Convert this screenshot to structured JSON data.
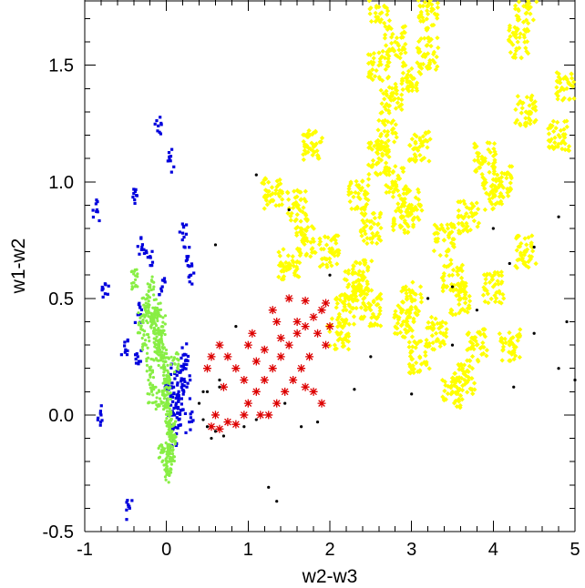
{
  "chart_data": {
    "type": "scatter",
    "title": "",
    "xlabel": "w2-w3",
    "ylabel": "w1-w2",
    "xlim": [
      -1,
      5
    ],
    "ylim": [
      -0.5,
      1.78
    ],
    "xticks": [
      "-1",
      "0",
      "1",
      "2",
      "3",
      "4",
      "5"
    ],
    "yticks": [
      "-0.5",
      "0.0",
      "0.5",
      "1.0",
      "1.5"
    ],
    "grid": false,
    "legend": "none",
    "series": [
      {
        "color": "#ffff00",
        "marker": "diamond",
        "description_distribution": "dense cloud centered near x=2.8, y=1.0; spans x 2.0–3.8, y 0.3–1.6",
        "values": [
          [
            2.8,
            1.0
          ],
          [
            2.6,
            1.1
          ],
          [
            3.0,
            0.9
          ],
          [
            2.7,
            1.2
          ],
          [
            2.9,
            0.85
          ],
          [
            2.5,
            0.8
          ],
          [
            3.1,
            1.15
          ],
          [
            2.4,
            0.6
          ],
          [
            2.3,
            0.55
          ],
          [
            2.2,
            0.45
          ],
          [
            3.4,
            0.75
          ],
          [
            3.5,
            0.6
          ],
          [
            3.6,
            0.5
          ],
          [
            2.6,
            1.5
          ],
          [
            2.8,
            1.6
          ],
          [
            3.0,
            1.45
          ],
          [
            3.2,
            1.55
          ],
          [
            2.1,
            0.35
          ],
          [
            3.8,
            0.3
          ],
          [
            4.0,
            0.55
          ],
          [
            4.4,
            0.7
          ],
          [
            3.9,
            1.1
          ],
          [
            4.4,
            1.3
          ],
          [
            2.6,
            1.75
          ],
          [
            3.2,
            1.72
          ],
          [
            1.8,
            1.15
          ],
          [
            1.6,
            0.9
          ],
          [
            1.7,
            0.75
          ],
          [
            4.0,
            0.95
          ],
          [
            3.7,
            0.85
          ],
          [
            3.3,
            0.35
          ],
          [
            2.9,
            0.4
          ],
          [
            3.5,
            0.1
          ],
          [
            3.0,
            0.5
          ],
          [
            1.5,
            0.65
          ],
          [
            4.1,
            1.0
          ],
          [
            4.2,
            0.3
          ],
          [
            4.8,
            1.2
          ],
          [
            4.9,
            1.4
          ],
          [
            4.3,
            1.6
          ],
          [
            4.4,
            1.75
          ],
          [
            2.5,
            0.45
          ],
          [
            2.0,
            0.7
          ],
          [
            1.3,
            0.95
          ],
          [
            3.65,
            0.15
          ],
          [
            3.1,
            0.25
          ],
          [
            2.75,
            1.35
          ],
          [
            2.35,
            0.95
          ]
        ]
      },
      {
        "color": "#dd0000",
        "marker": "asterisk",
        "values": [
          [
            1.9,
            0.45
          ],
          [
            1.8,
            0.42
          ],
          [
            1.7,
            0.38
          ],
          [
            1.6,
            0.35
          ],
          [
            1.5,
            0.3
          ],
          [
            1.4,
            0.25
          ],
          [
            1.3,
            0.2
          ],
          [
            1.2,
            0.15
          ],
          [
            1.1,
            0.1
          ],
          [
            1.0,
            0.05
          ],
          [
            1.85,
            0.35
          ],
          [
            1.75,
            0.25
          ],
          [
            1.95,
            0.3
          ],
          [
            1.65,
            0.2
          ],
          [
            1.55,
            0.15
          ],
          [
            1.45,
            0.1
          ],
          [
            1.35,
            0.05
          ],
          [
            1.25,
            0.0
          ],
          [
            1.15,
            0.0
          ],
          [
            0.95,
            0.15
          ],
          [
            0.85,
            0.2
          ],
          [
            0.75,
            0.25
          ],
          [
            0.65,
            0.3
          ],
          [
            0.55,
            0.25
          ],
          [
            0.5,
            0.2
          ],
          [
            0.55,
            -0.05
          ],
          [
            0.65,
            -0.06
          ],
          [
            0.75,
            -0.03
          ],
          [
            0.85,
            -0.04
          ],
          [
            1.05,
            0.35
          ],
          [
            1.3,
            0.45
          ],
          [
            1.5,
            0.5
          ],
          [
            1.7,
            0.49
          ],
          [
            1.95,
            0.48
          ],
          [
            1.6,
            0.4
          ],
          [
            1.4,
            0.33
          ],
          [
            1.2,
            0.28
          ],
          [
            1.1,
            0.23
          ],
          [
            0.95,
            0.0
          ],
          [
            1.9,
            0.05
          ],
          [
            1.8,
            0.1
          ],
          [
            1.7,
            0.12
          ],
          [
            2.0,
            0.38
          ],
          [
            1.0,
            0.3
          ],
          [
            0.7,
            0.12
          ],
          [
            0.6,
            0.0
          ],
          [
            1.35,
            0.4
          ]
        ]
      },
      {
        "color": "#0000dd",
        "marker": "square",
        "values": [
          [
            0.1,
            0.0
          ],
          [
            0.12,
            0.05
          ],
          [
            0.05,
            -0.05
          ],
          [
            0.15,
            0.1
          ],
          [
            0.2,
            0.15
          ],
          [
            0.22,
            0.2
          ],
          [
            0.08,
            -0.1
          ],
          [
            0.05,
            0.08
          ],
          [
            0.18,
            0.02
          ],
          [
            0.25,
            0.12
          ],
          [
            0.15,
            -0.02
          ],
          [
            0.1,
            0.18
          ],
          [
            0.02,
            0.12
          ],
          [
            -0.1,
            1.24
          ],
          [
            0.05,
            1.09
          ],
          [
            -0.4,
            0.95
          ],
          [
            -0.3,
            0.72
          ],
          [
            -0.2,
            0.68
          ],
          [
            0.2,
            0.78
          ],
          [
            0.25,
            0.68
          ],
          [
            -0.85,
            0.88
          ],
          [
            -0.75,
            0.52
          ],
          [
            -0.35,
            0.43
          ],
          [
            0.3,
            0.6
          ],
          [
            -0.05,
            0.55
          ],
          [
            -0.45,
            -0.4
          ],
          [
            -0.8,
            0.0
          ],
          [
            -0.5,
            0.28
          ],
          [
            -0.35,
            0.25
          ],
          [
            0.22,
            0.26
          ],
          [
            0.28,
            -0.03
          ]
        ]
      },
      {
        "color": "#88ee44",
        "marker": "dot",
        "values": [
          [
            -0.1,
            0.3
          ],
          [
            -0.05,
            0.25
          ],
          [
            0.0,
            0.15
          ],
          [
            0.02,
            0.05
          ],
          [
            0.03,
            -0.05
          ],
          [
            0.05,
            -0.15
          ],
          [
            -0.2,
            0.42
          ],
          [
            -0.15,
            0.4
          ],
          [
            -0.12,
            0.35
          ],
          [
            -0.08,
            0.28
          ],
          [
            -0.02,
            0.2
          ],
          [
            0.01,
            0.1
          ],
          [
            0.04,
            0.0
          ],
          [
            0.06,
            -0.1
          ],
          [
            0.04,
            -0.2
          ],
          [
            -0.1,
            0.45
          ],
          [
            -0.25,
            0.48
          ],
          [
            -0.3,
            0.4
          ],
          [
            -0.2,
            0.2
          ],
          [
            0.1,
            0.22
          ],
          [
            -0.08,
            0.07
          ],
          [
            -0.2,
            0.55
          ],
          [
            -0.38,
            0.58
          ],
          [
            -0.18,
            0.1
          ],
          [
            0.0,
            -0.24
          ],
          [
            -0.05,
            -0.16
          ],
          [
            -0.25,
            0.3
          ],
          [
            0.07,
            -0.07
          ],
          [
            -0.05,
            0.38
          ]
        ]
      },
      {
        "color": "#000000",
        "marker": "dot",
        "values": [
          [
            0.5,
            -0.05
          ],
          [
            0.6,
            -0.07
          ],
          [
            0.7,
            -0.09
          ],
          [
            0.4,
            0.05
          ],
          [
            0.5,
            0.1
          ],
          [
            0.65,
            0.15
          ],
          [
            0.55,
            -0.1
          ],
          [
            0.45,
            -0.02
          ],
          [
            0.95,
            -0.05
          ],
          [
            1.1,
            -0.02
          ],
          [
            1.45,
            0.05
          ],
          [
            1.65,
            -0.05
          ],
          [
            1.85,
            -0.03
          ],
          [
            2.3,
            0.11
          ],
          [
            3.0,
            0.09
          ],
          [
            3.5,
            0.55
          ],
          [
            4.0,
            0.8
          ],
          [
            4.2,
            0.65
          ],
          [
            4.5,
            0.72
          ],
          [
            4.8,
            0.2
          ],
          [
            4.5,
            0.35
          ],
          [
            4.9,
            0.4
          ],
          [
            3.2,
            0.5
          ],
          [
            2.0,
            0.6
          ],
          [
            1.1,
            1.03
          ],
          [
            1.5,
            0.88
          ],
          [
            0.6,
            0.73
          ],
          [
            1.25,
            -0.31
          ],
          [
            1.35,
            -0.37
          ],
          [
            3.8,
            0.45
          ],
          [
            5.0,
            0.15
          ],
          [
            4.25,
            0.12
          ],
          [
            3.5,
            0.3
          ],
          [
            4.8,
            0.85
          ],
          [
            2.5,
            0.25
          ],
          [
            0.85,
            0.38
          ],
          [
            0.65,
            0.12
          ],
          [
            0.45,
            0.1
          ]
        ]
      }
    ]
  }
}
